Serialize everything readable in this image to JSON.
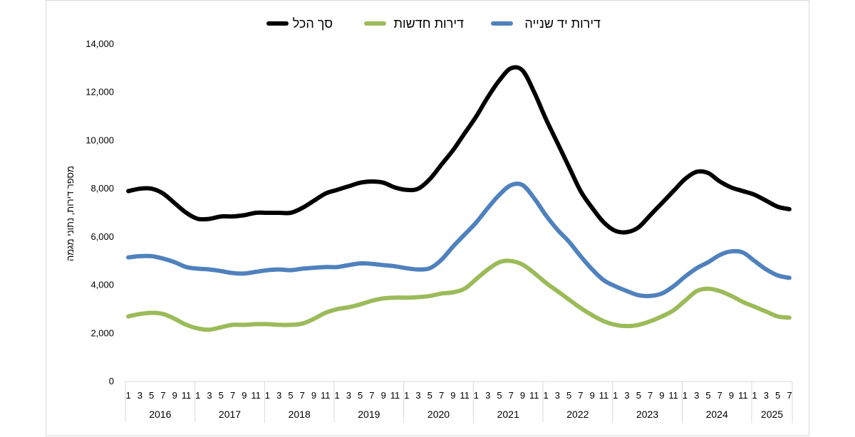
{
  "chart_data": {
    "type": "line",
    "ylabel": "מספר דירות, נתוני מגמה",
    "ylim": [
      0,
      14000
    ],
    "yticks": [
      "0",
      "2,000",
      "4,000",
      "6,000",
      "8,000",
      "10,000",
      "12,000",
      "14,000"
    ],
    "grid": false,
    "legend": "top",
    "month_tick_labels": [
      "1",
      "3",
      "5",
      "7",
      "9",
      "11"
    ],
    "years": [
      "2016",
      "2017",
      "2018",
      "2019",
      "2020",
      "2021",
      "2022",
      "2023",
      "2024",
      "2025"
    ],
    "x_start": "2016-01",
    "x_end": "2025-07",
    "series": [
      {
        "name": "סך הכל",
        "color": "#000000",
        "points": [
          [
            "2016-01",
            7900
          ],
          [
            "2016-03",
            8000
          ],
          [
            "2016-05",
            8000
          ],
          [
            "2016-07",
            7800
          ],
          [
            "2016-09",
            7400
          ],
          [
            "2016-11",
            7000
          ],
          [
            "2017-01",
            6750
          ],
          [
            "2017-03",
            6750
          ],
          [
            "2017-05",
            6850
          ],
          [
            "2017-07",
            6850
          ],
          [
            "2017-09",
            6900
          ],
          [
            "2017-11",
            7000
          ],
          [
            "2018-01",
            7000
          ],
          [
            "2018-03",
            7000
          ],
          [
            "2018-05",
            7000
          ],
          [
            "2018-07",
            7200
          ],
          [
            "2018-09",
            7500
          ],
          [
            "2018-11",
            7800
          ],
          [
            "2019-01",
            7950
          ],
          [
            "2019-03",
            8100
          ],
          [
            "2019-05",
            8250
          ],
          [
            "2019-07",
            8300
          ],
          [
            "2019-09",
            8250
          ],
          [
            "2019-11",
            8050
          ],
          [
            "2020-01",
            7950
          ],
          [
            "2020-03",
            8000
          ],
          [
            "2020-05",
            8400
          ],
          [
            "2020-07",
            9000
          ],
          [
            "2020-09",
            9600
          ],
          [
            "2020-11",
            10300
          ],
          [
            "2021-01",
            11000
          ],
          [
            "2021-03",
            11800
          ],
          [
            "2021-05",
            12500
          ],
          [
            "2021-07",
            13000
          ],
          [
            "2021-09",
            12900
          ],
          [
            "2021-11",
            12000
          ],
          [
            "2022-01",
            10900
          ],
          [
            "2022-03",
            9900
          ],
          [
            "2022-05",
            8900
          ],
          [
            "2022-07",
            7900
          ],
          [
            "2022-09",
            7200
          ],
          [
            "2022-11",
            6600
          ],
          [
            "2023-01",
            6250
          ],
          [
            "2023-03",
            6200
          ],
          [
            "2023-05",
            6400
          ],
          [
            "2023-07",
            6900
          ],
          [
            "2023-09",
            7400
          ],
          [
            "2023-11",
            7900
          ],
          [
            "2024-01",
            8400
          ],
          [
            "2024-03",
            8700
          ],
          [
            "2024-05",
            8650
          ],
          [
            "2024-07",
            8300
          ],
          [
            "2024-09",
            8050
          ],
          [
            "2024-11",
            7900
          ],
          [
            "2025-01",
            7750
          ],
          [
            "2025-03",
            7500
          ],
          [
            "2025-05",
            7250
          ],
          [
            "2025-07",
            7150
          ]
        ]
      },
      {
        "name": "דירות חדשות",
        "color": "#9bbb59",
        "points": [
          [
            "2016-01",
            2700
          ],
          [
            "2016-03",
            2800
          ],
          [
            "2016-05",
            2850
          ],
          [
            "2016-07",
            2800
          ],
          [
            "2016-09",
            2600
          ],
          [
            "2016-11",
            2350
          ],
          [
            "2017-01",
            2200
          ],
          [
            "2017-03",
            2150
          ],
          [
            "2017-05",
            2250
          ],
          [
            "2017-07",
            2350
          ],
          [
            "2017-09",
            2350
          ],
          [
            "2017-11",
            2380
          ],
          [
            "2018-01",
            2380
          ],
          [
            "2018-03",
            2350
          ],
          [
            "2018-05",
            2350
          ],
          [
            "2018-07",
            2400
          ],
          [
            "2018-09",
            2600
          ],
          [
            "2018-11",
            2850
          ],
          [
            "2019-01",
            3000
          ],
          [
            "2019-03",
            3080
          ],
          [
            "2019-05",
            3200
          ],
          [
            "2019-07",
            3350
          ],
          [
            "2019-09",
            3450
          ],
          [
            "2019-11",
            3480
          ],
          [
            "2020-01",
            3480
          ],
          [
            "2020-03",
            3500
          ],
          [
            "2020-05",
            3550
          ],
          [
            "2020-07",
            3650
          ],
          [
            "2020-09",
            3700
          ],
          [
            "2020-11",
            3850
          ],
          [
            "2021-01",
            4250
          ],
          [
            "2021-03",
            4650
          ],
          [
            "2021-05",
            4950
          ],
          [
            "2021-07",
            5000
          ],
          [
            "2021-09",
            4850
          ],
          [
            "2021-11",
            4500
          ],
          [
            "2022-01",
            4100
          ],
          [
            "2022-03",
            3750
          ],
          [
            "2022-05",
            3400
          ],
          [
            "2022-07",
            3050
          ],
          [
            "2022-09",
            2750
          ],
          [
            "2022-11",
            2500
          ],
          [
            "2023-01",
            2350
          ],
          [
            "2023-03",
            2300
          ],
          [
            "2023-05",
            2350
          ],
          [
            "2023-07",
            2500
          ],
          [
            "2023-09",
            2700
          ],
          [
            "2023-11",
            2950
          ],
          [
            "2024-01",
            3350
          ],
          [
            "2024-03",
            3750
          ],
          [
            "2024-05",
            3850
          ],
          [
            "2024-07",
            3750
          ],
          [
            "2024-09",
            3550
          ],
          [
            "2024-11",
            3300
          ],
          [
            "2025-01",
            3100
          ],
          [
            "2025-03",
            2900
          ],
          [
            "2025-05",
            2700
          ],
          [
            "2025-07",
            2650
          ]
        ]
      },
      {
        "name": "דירות יד שנייה",
        "color": "#4f81bd",
        "points": [
          [
            "2016-01",
            5150
          ],
          [
            "2016-03",
            5200
          ],
          [
            "2016-05",
            5200
          ],
          [
            "2016-07",
            5100
          ],
          [
            "2016-09",
            4950
          ],
          [
            "2016-11",
            4750
          ],
          [
            "2017-01",
            4680
          ],
          [
            "2017-03",
            4650
          ],
          [
            "2017-05",
            4580
          ],
          [
            "2017-07",
            4500
          ],
          [
            "2017-09",
            4480
          ],
          [
            "2017-11",
            4550
          ],
          [
            "2018-01",
            4620
          ],
          [
            "2018-03",
            4650
          ],
          [
            "2018-05",
            4620
          ],
          [
            "2018-07",
            4680
          ],
          [
            "2018-09",
            4720
          ],
          [
            "2018-11",
            4750
          ],
          [
            "2019-01",
            4750
          ],
          [
            "2019-03",
            4830
          ],
          [
            "2019-05",
            4900
          ],
          [
            "2019-07",
            4880
          ],
          [
            "2019-09",
            4830
          ],
          [
            "2019-11",
            4780
          ],
          [
            "2020-01",
            4700
          ],
          [
            "2020-03",
            4650
          ],
          [
            "2020-05",
            4700
          ],
          [
            "2020-07",
            5050
          ],
          [
            "2020-09",
            5600
          ],
          [
            "2020-11",
            6100
          ],
          [
            "2021-01",
            6600
          ],
          [
            "2021-03",
            7200
          ],
          [
            "2021-05",
            7750
          ],
          [
            "2021-07",
            8150
          ],
          [
            "2021-09",
            8150
          ],
          [
            "2021-11",
            7600
          ],
          [
            "2022-01",
            6900
          ],
          [
            "2022-03",
            6300
          ],
          [
            "2022-05",
            5800
          ],
          [
            "2022-07",
            5200
          ],
          [
            "2022-09",
            4650
          ],
          [
            "2022-11",
            4200
          ],
          [
            "2023-01",
            3950
          ],
          [
            "2023-03",
            3750
          ],
          [
            "2023-05",
            3580
          ],
          [
            "2023-07",
            3550
          ],
          [
            "2023-09",
            3650
          ],
          [
            "2023-11",
            3950
          ],
          [
            "2024-01",
            4350
          ],
          [
            "2024-03",
            4700
          ],
          [
            "2024-05",
            4950
          ],
          [
            "2024-07",
            5250
          ],
          [
            "2024-09",
            5400
          ],
          [
            "2024-11",
            5350
          ],
          [
            "2025-01",
            5000
          ],
          [
            "2025-03",
            4650
          ],
          [
            "2025-05",
            4400
          ],
          [
            "2025-07",
            4300
          ]
        ]
      }
    ]
  }
}
